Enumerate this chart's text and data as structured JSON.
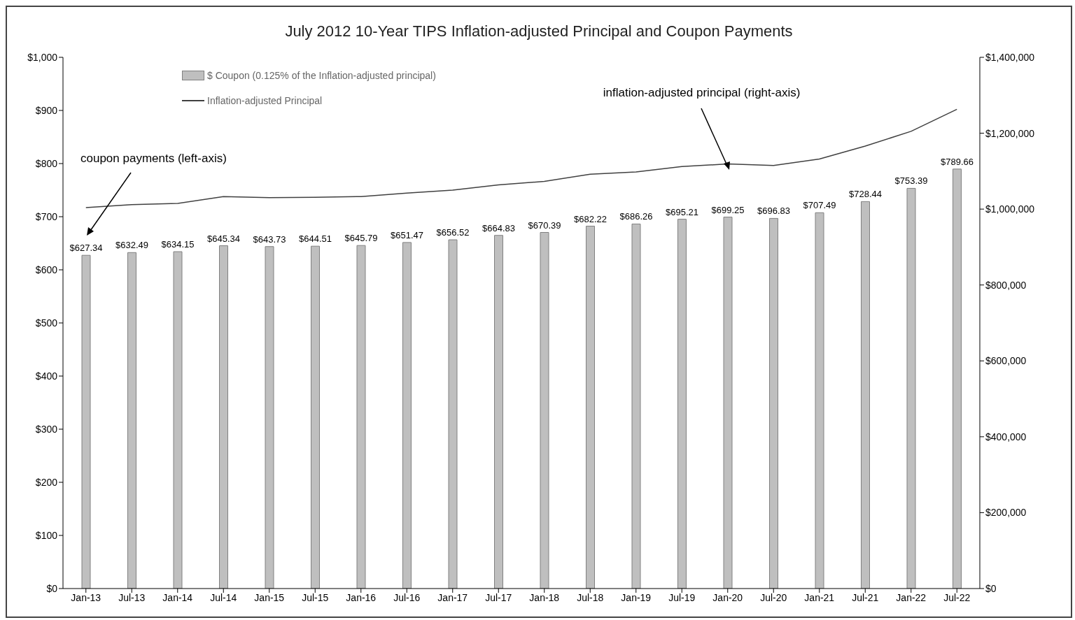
{
  "chart_data": {
    "type": "bar",
    "title": "July 2012 10-Year TIPS Inflation-adjusted Principal and Coupon Payments",
    "categories": [
      "Jan-13",
      "Jul-13",
      "Jan-14",
      "Jul-14",
      "Jan-15",
      "Jul-15",
      "Jan-16",
      "Jul-16",
      "Jan-17",
      "Jul-17",
      "Jan-18",
      "Jul-18",
      "Jan-19",
      "Jul-19",
      "Jan-20",
      "Jul-20",
      "Jan-21",
      "Jul-21",
      "Jan-22",
      "Jul-22"
    ],
    "series": [
      {
        "name": "$ Coupon (0.125% of the Inflation-adjusted principal)",
        "color": "#bfbfbf",
        "values": [
          627.34,
          632.49,
          634.15,
          645.34,
          643.73,
          644.51,
          645.79,
          651.47,
          656.52,
          664.83,
          670.39,
          682.22,
          686.26,
          695.21,
          699.25,
          696.83,
          707.49,
          728.44,
          753.39,
          789.66
        ],
        "value_labels": [
          "$627.34",
          "$632.49",
          "$634.15",
          "$645.34",
          "$643.73",
          "$644.51",
          "$645.79",
          "$651.47",
          "$656.52",
          "$664.83",
          "$670.39",
          "$682.22",
          "$686.26",
          "$695.21",
          "$699.25",
          "$696.83",
          "$707.49",
          "$728.44",
          "$753.39",
          "$789.66"
        ]
      },
      {
        "name": "Inflation-adjusted Principal",
        "type": "line",
        "axis": "y2",
        "color": "#404040",
        "values": [
          1004000,
          1012000,
          1015000,
          1033000,
          1030000,
          1031000,
          1033000,
          1042000,
          1050000,
          1064000,
          1073000,
          1092000,
          1098000,
          1112000,
          1119000,
          1115000,
          1132000,
          1166000,
          1205000,
          1263000
        ]
      }
    ],
    "ylim": [
      0,
      1000
    ],
    "yticks": [
      {
        "value": 0,
        "label": "$0"
      },
      {
        "value": 100,
        "label": "$100"
      },
      {
        "value": 200,
        "label": "$200"
      },
      {
        "value": 300,
        "label": "$300"
      },
      {
        "value": 400,
        "label": "$400"
      },
      {
        "value": 500,
        "label": "$500"
      },
      {
        "value": 600,
        "label": "$600"
      },
      {
        "value": 700,
        "label": "$700"
      },
      {
        "value": 800,
        "label": "$800"
      },
      {
        "value": 900,
        "label": "$900"
      },
      {
        "value": 1000,
        "label": "$1,000"
      }
    ],
    "y2lim": [
      0,
      1400000
    ],
    "y2ticks": [
      {
        "value": 0,
        "label": "$0"
      },
      {
        "value": 200000,
        "label": "$200,000"
      },
      {
        "value": 400000,
        "label": "$400,000"
      },
      {
        "value": 600000,
        "label": "$600,000"
      },
      {
        "value": 800000,
        "label": "$800,000"
      },
      {
        "value": 1000000,
        "label": "$1,000,000"
      },
      {
        "value": 1200000,
        "label": "$1,200,000"
      },
      {
        "value": 1400000,
        "label": "$1,400,000"
      }
    ],
    "annotations": [
      "coupon payments (left-axis)",
      {
        "text": "inflation-adjusted principal (right-axis)",
        "x": "Jan-20"
      }
    ],
    "legend": "top left",
    "grid": false,
    "marker": "none",
    "line_style": "solid"
  }
}
